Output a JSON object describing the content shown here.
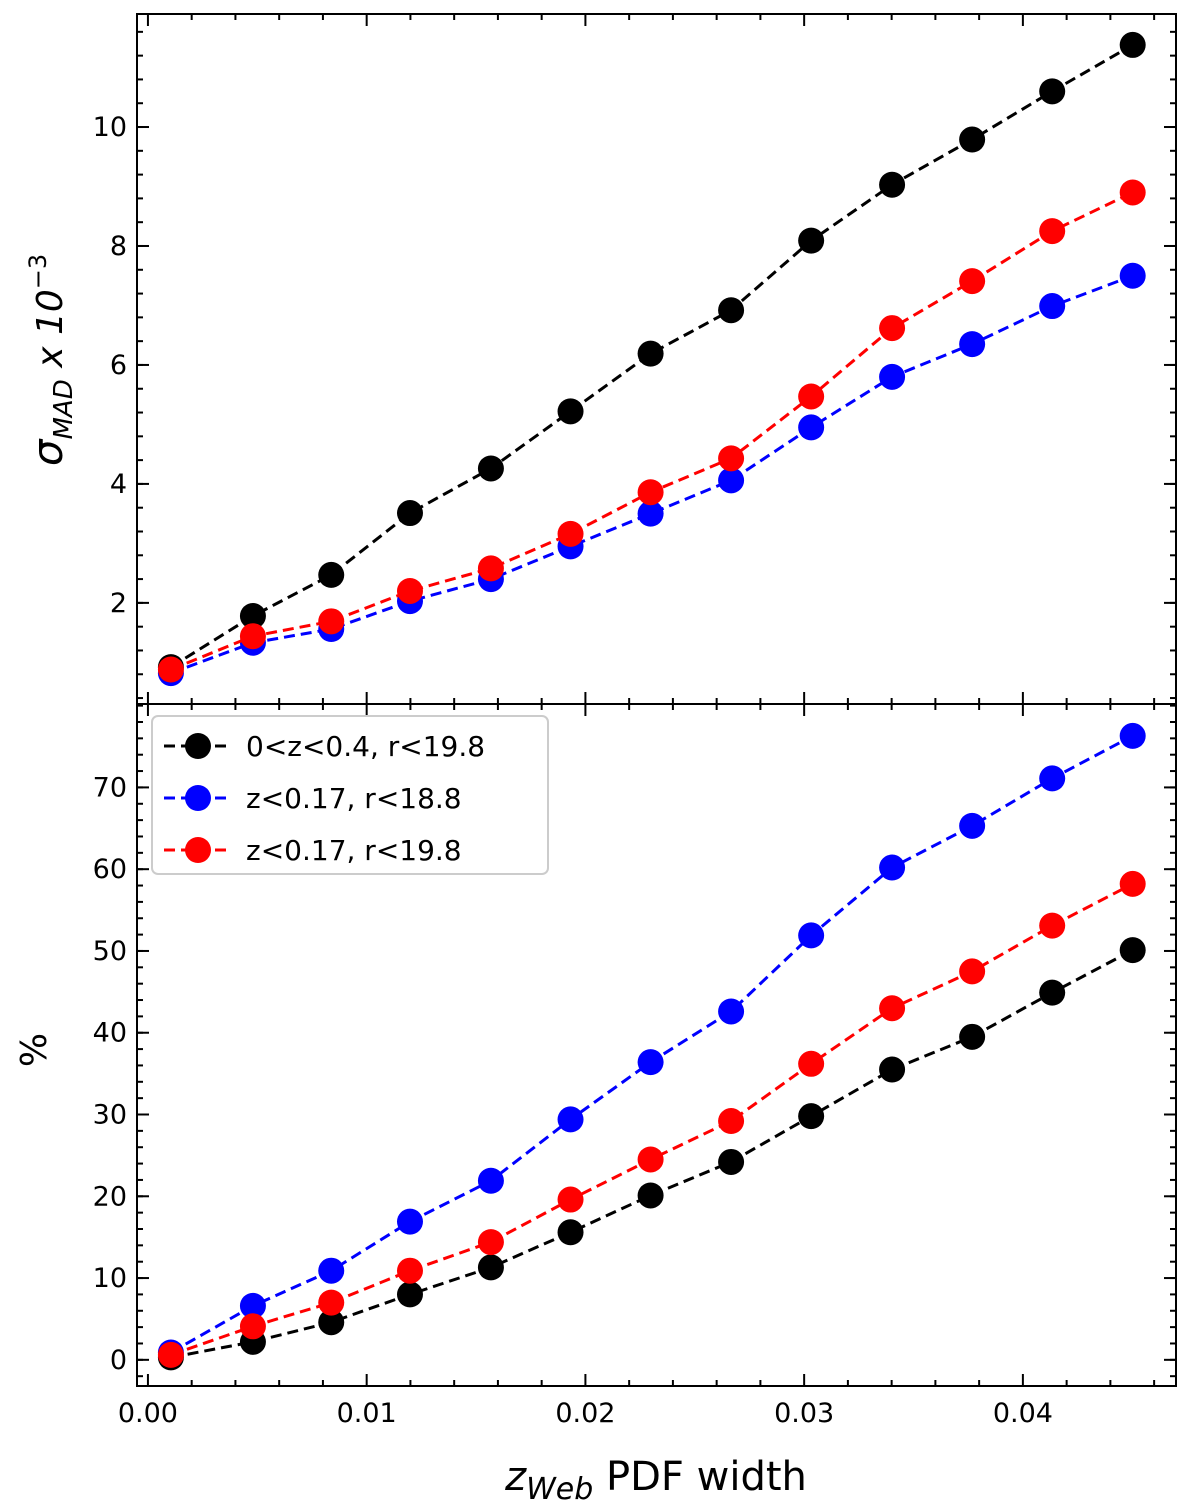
{
  "chart_data": [
    {
      "type": "line",
      "panel": "top",
      "ylabel": "σ",
      "ylabel_sub": "MAD",
      "ylabel_suffix": " x 10",
      "ylabel_exp": "−3",
      "xlim": [
        -0.0005,
        0.047
      ],
      "ylim": [
        0.3,
        11.9
      ],
      "yticks": [
        2,
        4,
        6,
        8,
        10
      ],
      "yticklabels": [
        "2",
        "4",
        "6",
        "8",
        "10"
      ],
      "x": [
        0.00105,
        0.0048,
        0.00838,
        0.01198,
        0.01568,
        0.01932,
        0.02298,
        0.02666,
        0.03032,
        0.03402,
        0.03768,
        0.04134,
        0.04502
      ],
      "series": [
        {
          "name": "0<z<0.4, r<19.8",
          "color": "#000000",
          "values": [
            0.92,
            1.78,
            2.47,
            3.51,
            4.26,
            5.22,
            6.19,
            6.92,
            8.09,
            9.03,
            9.79,
            10.6,
            11.38
          ]
        },
        {
          "name": "z<0.17, r<18.8",
          "color": "#0000ff",
          "values": [
            0.82,
            1.33,
            1.56,
            2.03,
            2.4,
            2.95,
            3.5,
            4.06,
            4.95,
            5.8,
            6.35,
            6.99,
            7.5
          ]
        },
        {
          "name": "z<0.17, r<19.8",
          "color": "#ff0000",
          "values": [
            0.88,
            1.44,
            1.69,
            2.2,
            2.58,
            3.16,
            3.86,
            4.43,
            5.47,
            6.62,
            7.41,
            8.25,
            8.9
          ]
        }
      ]
    },
    {
      "type": "line",
      "panel": "bottom",
      "ylabel": "%",
      "xlabel_main": "z",
      "xlabel_sub": "Web",
      "xlabel_rest": " PDF width",
      "xlim": [
        -0.0005,
        0.047
      ],
      "ylim": [
        -3.2,
        80.2
      ],
      "xticks": [
        0.0,
        0.01,
        0.02,
        0.03,
        0.04
      ],
      "xticklabels": [
        "0.00",
        "0.01",
        "0.02",
        "0.03",
        "0.04"
      ],
      "yticks": [
        0,
        10,
        20,
        30,
        40,
        50,
        60,
        70
      ],
      "yticklabels": [
        "0",
        "10",
        "20",
        "30",
        "40",
        "50",
        "60",
        "70"
      ],
      "x": [
        0.00105,
        0.0048,
        0.00838,
        0.01198,
        0.01568,
        0.01932,
        0.02298,
        0.02666,
        0.03032,
        0.03402,
        0.03768,
        0.04134,
        0.04502
      ],
      "legend_position": "top-left",
      "series": [
        {
          "name": "0<z<0.4, r<19.8",
          "color": "#000000",
          "values": [
            0.3,
            2.2,
            4.6,
            8.0,
            11.3,
            15.6,
            20.1,
            24.2,
            29.8,
            35.5,
            39.5,
            44.9,
            50.1
          ]
        },
        {
          "name": "z<0.17, r<18.8",
          "color": "#0000ff",
          "values": [
            0.9,
            6.6,
            10.9,
            16.9,
            21.9,
            29.4,
            36.4,
            42.6,
            51.9,
            60.2,
            65.3,
            71.1,
            76.3
          ]
        },
        {
          "name": "z<0.17, r<19.8",
          "color": "#ff0000",
          "values": [
            0.6,
            4.1,
            7.0,
            10.9,
            14.4,
            19.6,
            24.5,
            29.2,
            36.2,
            43.0,
            47.5,
            53.1,
            58.2
          ]
        }
      ]
    }
  ]
}
